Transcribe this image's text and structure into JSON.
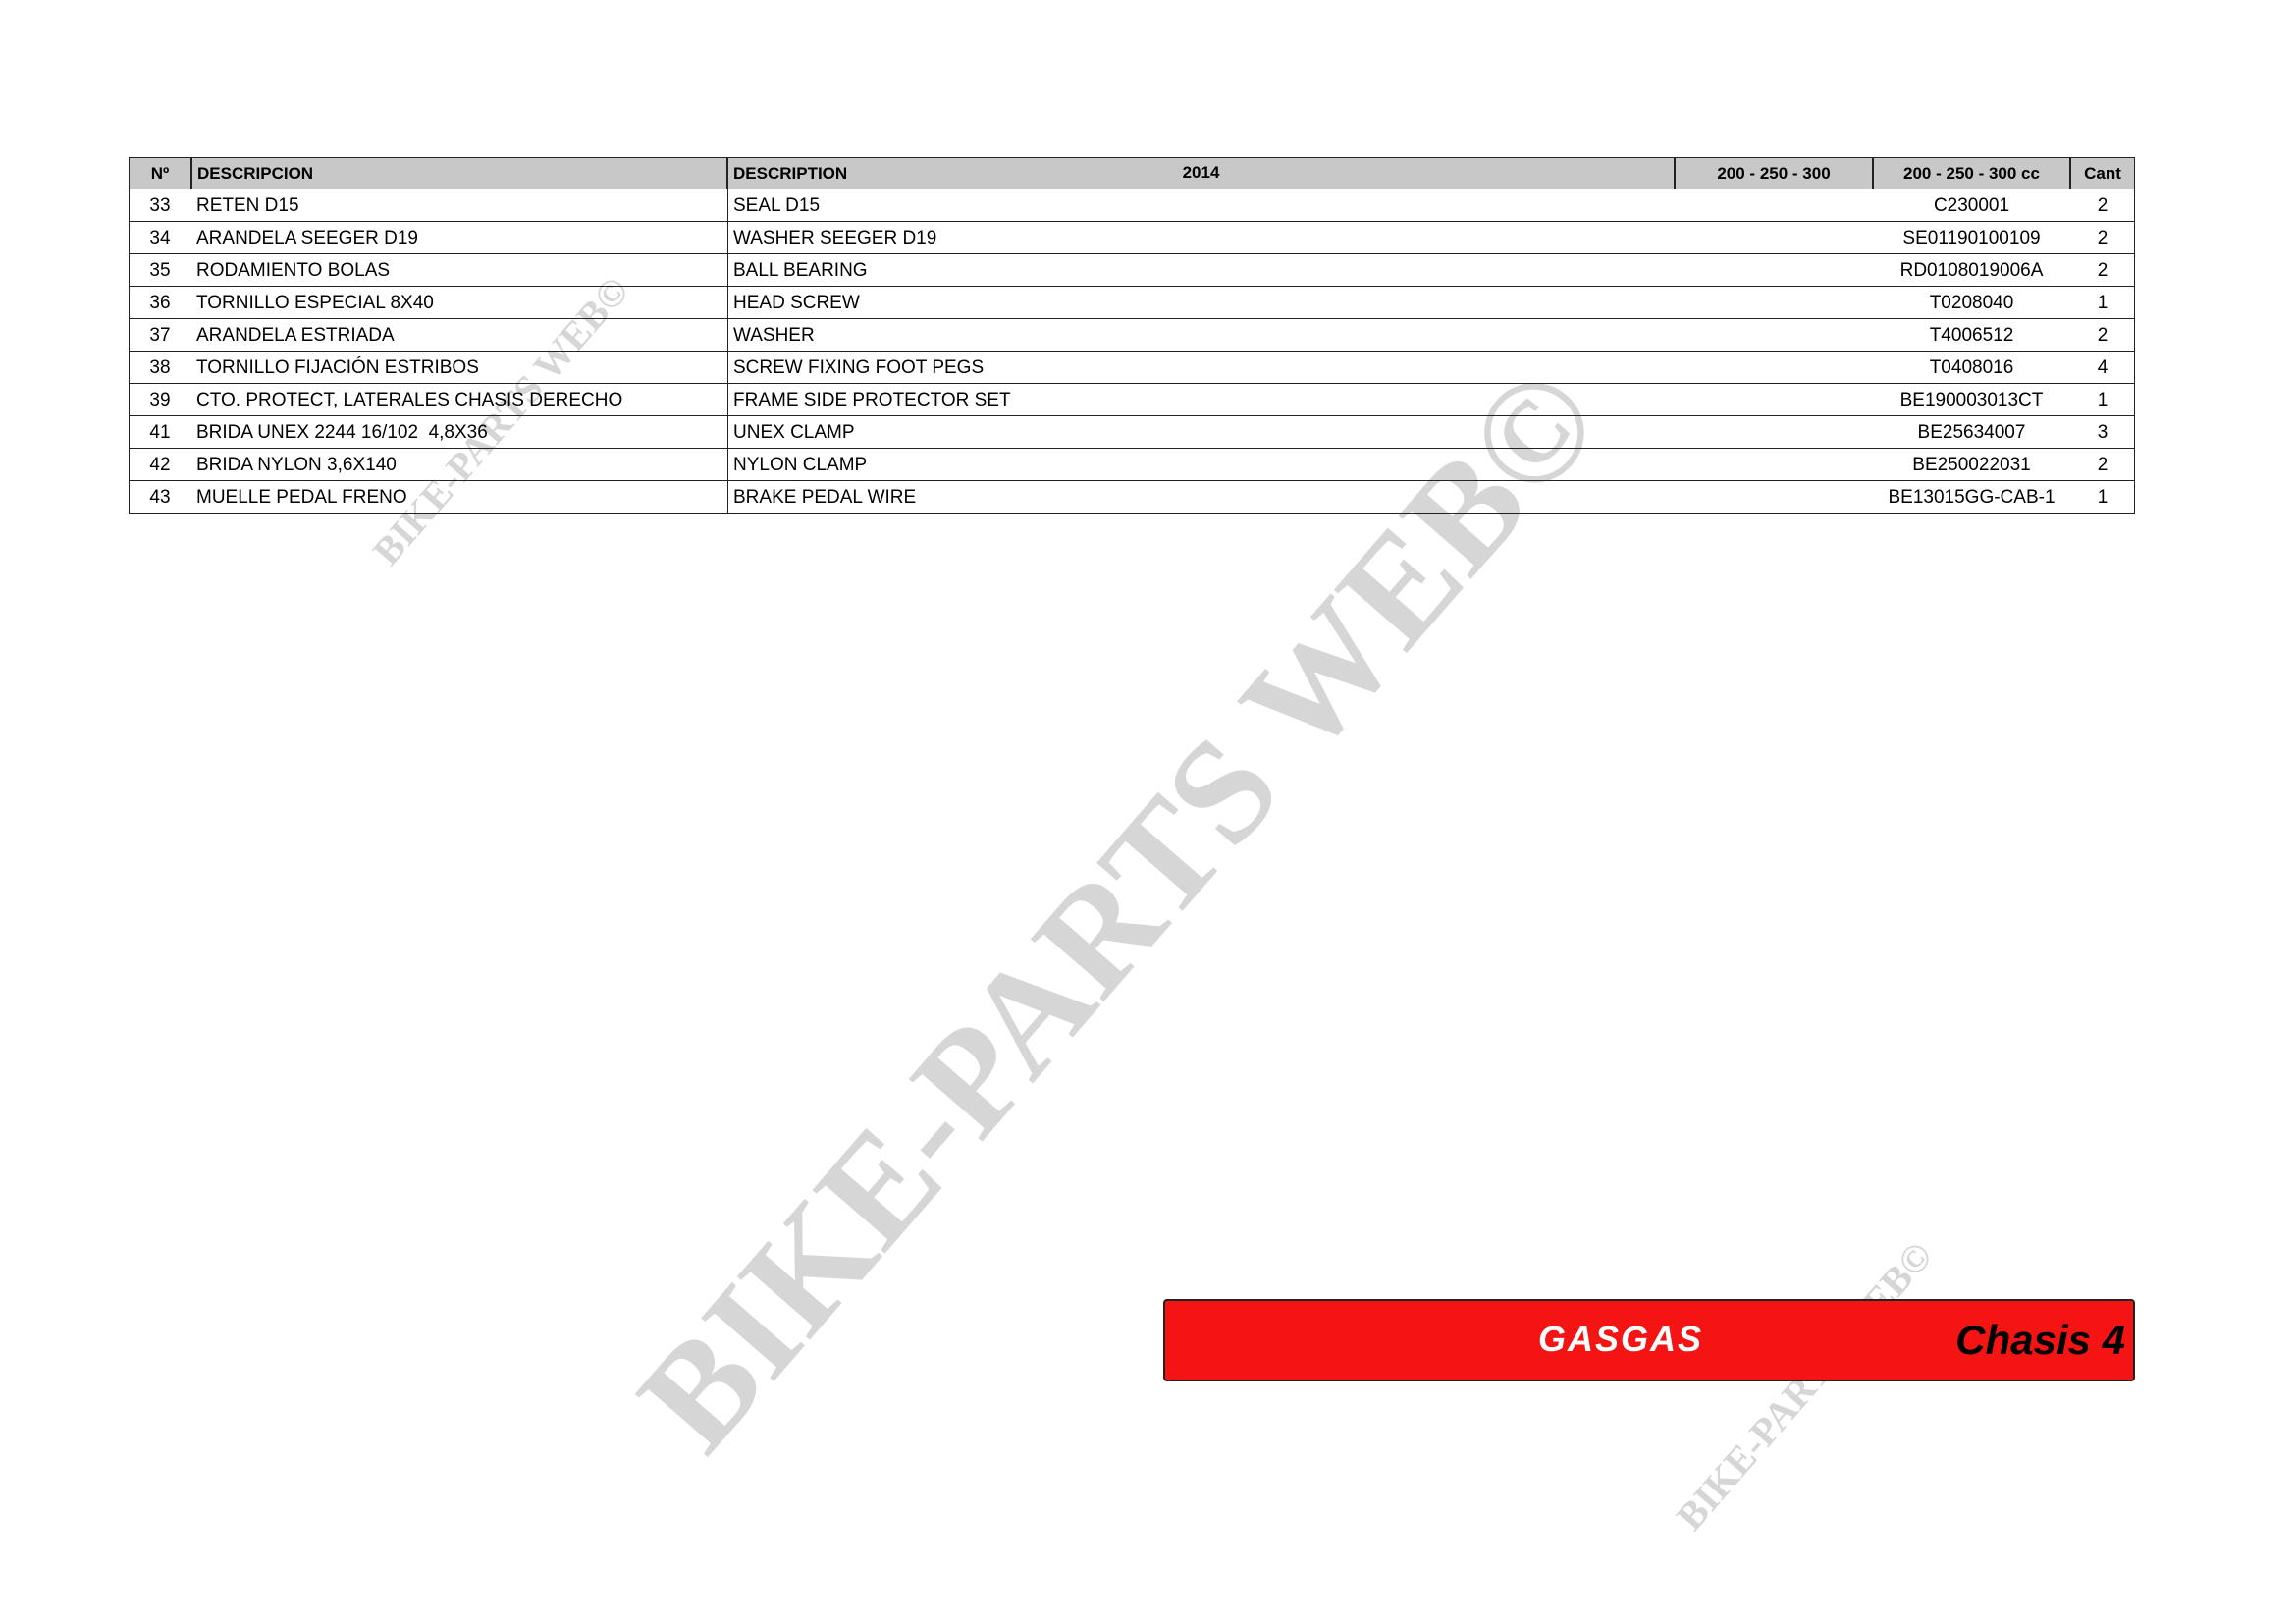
{
  "table": {
    "header": [
      "Nº",
      "DESCRIPCION",
      "DESCRIPTION",
      "2014",
      "200 - 250 - 300",
      "200 - 250 - 300 cc",
      "Cant"
    ],
    "rows": [
      [
        "33",
        "RETEN D15",
        "SEAL D15",
        "C230001",
        "2"
      ],
      [
        "34",
        "ARANDELA SEEGER D19",
        "WASHER SEEGER D19",
        "SE01190100109",
        "2"
      ],
      [
        "35",
        "RODAMIENTO BOLAS",
        "BALL BEARING",
        "RD0108019006A",
        "2"
      ],
      [
        "36",
        "TORNILLO ESPECIAL 8X40",
        "HEAD SCREW",
        "T0208040",
        "1"
      ],
      [
        "37",
        "ARANDELA ESTRIADA",
        "WASHER",
        "T4006512",
        "2"
      ],
      [
        "38",
        "TORNILLO FIJACIÓN ESTRIBOS",
        "SCREW FIXING FOOT PEGS",
        "T0408016",
        "4"
      ],
      [
        "39",
        "CTO. PROTECT, LATERALES CHASIS DERECHO",
        "FRAME SIDE PROTECTOR SET",
        "BE190003013CT",
        "1"
      ],
      [
        "41",
        "BRIDA UNEX 2244 16/102  4,8X36",
        "UNEX CLAMP",
        "BE25634007",
        "3"
      ],
      [
        "42",
        "BRIDA NYLON 3,6X140",
        "NYLON CLAMP",
        "BE250022031",
        "2"
      ],
      [
        "43",
        "MUELLE PEDAL FRENO",
        "BRAKE PEDAL WIRE",
        "BE13015GG-CAB-1",
        "1"
      ]
    ]
  },
  "footer": {
    "brand": "GASGAS",
    "section": "Chasis 4"
  },
  "watermark": "BIKE-PARTS WEB©"
}
